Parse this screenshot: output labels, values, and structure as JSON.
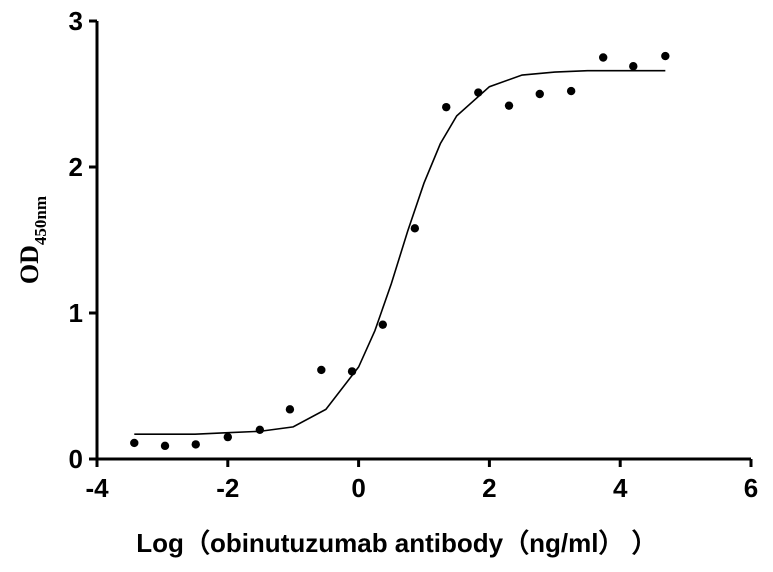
{
  "chart_data": {
    "type": "scatter",
    "xlabel": "Log（obinutuzumab antibody（ng/ml）  ）",
    "ylabel": "OD",
    "ylabel_sub": "450nm",
    "xlim": [
      -4,
      6
    ],
    "xticks": [
      -4,
      -2,
      0,
      2,
      4,
      6
    ],
    "ylim": [
      0,
      3
    ],
    "yticks": [
      0,
      1,
      2,
      3
    ],
    "series": [
      {
        "color": "#000000",
        "marker": "circle",
        "x": [
          -3.43,
          -2.96,
          -2.49,
          -2.0,
          -1.51,
          -1.05,
          -0.57,
          -0.1,
          0.37,
          0.86,
          1.34,
          1.83,
          2.3,
          2.77,
          3.25,
          3.74,
          4.2,
          4.69
        ],
        "values": [
          0.11,
          0.09,
          0.1,
          0.15,
          0.2,
          0.34,
          0.61,
          0.6,
          0.92,
          1.58,
          2.41,
          2.51,
          2.42,
          2.5,
          2.52,
          2.75,
          2.69,
          2.76
        ]
      },
      {
        "color": "#000000",
        "marker": "line",
        "x": [
          -3.43,
          -3,
          -2.5,
          -2,
          -1.5,
          -1,
          -0.5,
          0,
          0.25,
          0.5,
          0.75,
          1,
          1.25,
          1.5,
          2,
          2.5,
          3,
          3.5,
          4,
          4.69
        ],
        "values": [
          0.17,
          0.17,
          0.17,
          0.18,
          0.19,
          0.22,
          0.34,
          0.63,
          0.88,
          1.2,
          1.56,
          1.89,
          2.16,
          2.35,
          2.55,
          2.63,
          2.65,
          2.66,
          2.66,
          2.66
        ]
      }
    ]
  }
}
